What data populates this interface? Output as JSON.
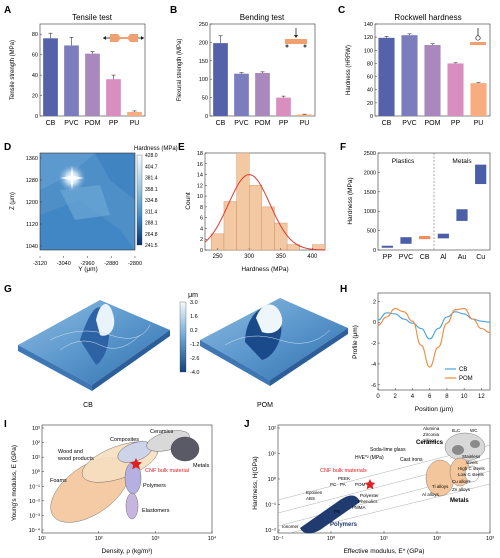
{
  "panels": {
    "A": {
      "letter": "A",
      "title": "Tensile test",
      "ylabel": "Tensile strength (MPa)",
      "yticks": [
        "0",
        "20",
        "40",
        "60",
        "80"
      ]
    },
    "B": {
      "letter": "B",
      "title": "Bending test",
      "ylabel": "Flexural strength (MPa)",
      "yticks": [
        "0",
        "50",
        "100",
        "150",
        "200",
        "250"
      ]
    },
    "C": {
      "letter": "C",
      "title": "Rockwell hardness",
      "ylabel": "Hardness (HRRW)",
      "yticks": [
        "0",
        "20",
        "40",
        "60",
        "80",
        "100",
        "120",
        "140"
      ]
    },
    "D": {
      "letter": "D",
      "xlabel": "Y (μm)",
      "ylabel": "Z (μm)",
      "colorbar_title": "Hardness (MPa)",
      "xticks": [
        "-3120",
        "-3040",
        "-2960",
        "-2880",
        "-2800"
      ],
      "yticks": [
        "1360",
        "1280",
        "1200",
        "1120",
        "1040"
      ],
      "colorbar_ticks": [
        "428.0",
        "404.7",
        "381.4",
        "358.1",
        "334.8",
        "311.4",
        "288.1",
        "264.8",
        "241.5"
      ]
    },
    "E": {
      "letter": "E",
      "xlabel": "Hardness (MPa)",
      "ylabel": "Count",
      "xticks": [
        "250",
        "300",
        "350",
        "400"
      ],
      "yticks": [
        "0",
        "2",
        "4",
        "6",
        "8",
        "10",
        "12",
        "14",
        "16",
        "18"
      ]
    },
    "F": {
      "letter": "F",
      "ylabel": "Hardness (MPa)",
      "group1": "Plastics",
      "group2": "Metals",
      "yticks": [
        "0",
        "500",
        "1000",
        "1500",
        "2000",
        "2500"
      ]
    },
    "G": {
      "letter": "G",
      "colorbar_title": "μm",
      "colorbar_ticks": [
        "3.0",
        "1.6",
        "0.2",
        "-1.2",
        "-2.6",
        "-4.0"
      ],
      "label_left": "CB",
      "label_right": "POM"
    },
    "H": {
      "letter": "H",
      "xlabel": "Position (μm)",
      "ylabel": "Profile (μm)",
      "xticks": [
        "0",
        "2",
        "4",
        "6",
        "8",
        "10",
        "12"
      ],
      "yticks": [
        "2",
        "0",
        "-2",
        "-4",
        "-6"
      ]
    },
    "I": {
      "letter": "I",
      "xlabel": "Density, ρ (kg/m³)",
      "ylabel": "Young's modulus, E (GPa)",
      "xticks": [
        "10¹",
        "10²",
        "10³",
        "10⁴"
      ],
      "yticks": [
        "10³",
        "10²",
        "10¹",
        "10⁰",
        "10⁻¹",
        "10⁻²",
        "10⁻³",
        "10⁻⁴"
      ],
      "labels": {
        "ceramics": "Ceramics",
        "composites": "Composites",
        "wood": "Wood and",
        "wood2": "wood products",
        "metals": "Metals",
        "cnf": "CNF bulk material",
        "foams": "Foams",
        "polymers": "Polymers",
        "elastomers": "Elastomers"
      }
    },
    "J": {
      "letter": "J",
      "xlabel": "Effective modulus, E* (GPa)",
      "ylabel": "Hardness, H(GPa)",
      "xticks": [
        "10⁻¹",
        "10⁰",
        "10¹",
        "10²",
        "10³"
      ],
      "yticks": [
        "10²",
        "10¹",
        "10⁰",
        "10⁻¹",
        "10⁻²"
      ],
      "labels": {
        "ratio": "H³/E*² (MPa)",
        "cnf": "CNF bulk materials",
        "sodalime": "Soda-lime glass",
        "castiron": "Cast irons",
        "ceramics": "Ceramics",
        "alumina": "Alumina",
        "zirconia": "Zirconia",
        "silicon": "Silicon",
        "b4c": "B₄C",
        "wc": "WC",
        "stainless": "Stainless",
        "steels": "steels",
        "highc": "High C steels",
        "lowc": "Low C steels",
        "cualloys": "Cu alloys",
        "tialloys": "Ti alloys",
        "znalloys": "Zn alloys",
        "alalloys": "Al alloys",
        "metals": "Metals",
        "polymers": "Polymers",
        "peek": "PEEK",
        "pc": "PC",
        "pa": "PA",
        "pom": "POM",
        "epoxies": "Epoxies",
        "abs": "ABS",
        "polyester": "Polyester",
        "phenolics": "Phenolics",
        "pmma": "PMMA",
        "ps": "PS",
        "ionomer": "Ionomer"
      }
    }
  },
  "chart_data": [
    {
      "type": "bar",
      "panel": "A",
      "categories": [
        "CB",
        "PVC",
        "POM",
        "PP",
        "PU"
      ],
      "values": [
        76,
        69,
        61,
        36,
        4
      ],
      "errors": [
        5,
        8,
        2,
        4,
        1
      ],
      "ylim": [
        0,
        90
      ],
      "colors": [
        "#5561a8",
        "#7b7dbc",
        "#a888bd",
        "#d88fc0",
        "#f7ad80"
      ]
    },
    {
      "type": "bar",
      "panel": "B",
      "categories": [
        "CB",
        "PVC",
        "POM",
        "PP",
        "PU"
      ],
      "values": [
        198,
        115,
        117,
        50,
        4
      ],
      "errors": [
        20,
        3,
        3,
        4,
        1
      ],
      "ylim": [
        0,
        250
      ],
      "colors": [
        "#5561a8",
        "#7b7dbc",
        "#a888bd",
        "#d88fc0",
        "#f7ad80"
      ]
    },
    {
      "type": "bar",
      "panel": "C",
      "categories": [
        "CB",
        "PVC",
        "POM",
        "PP",
        "PU"
      ],
      "values": [
        119,
        123,
        108,
        80,
        50
      ],
      "errors": [
        2,
        2,
        2,
        1,
        1
      ],
      "ylim": [
        0,
        140
      ],
      "colors": [
        "#5561a8",
        "#7b7dbc",
        "#a888bd",
        "#d88fc0",
        "#f7ad80"
      ]
    },
    {
      "type": "heatmap",
      "panel": "D",
      "xlim": [
        -3120,
        -2800
      ],
      "ylim": [
        1040,
        1360
      ],
      "clim": [
        241.5,
        428.0
      ],
      "peak_value": 428.0
    },
    {
      "type": "bar",
      "panel": "E",
      "x": [
        250,
        270,
        290,
        310,
        330,
        350,
        370,
        390,
        410
      ],
      "values": [
        3,
        9,
        18,
        12,
        8,
        5,
        1,
        0,
        1
      ],
      "xlim": [
        230,
        420
      ],
      "ylim": [
        0,
        18
      ],
      "fit": {
        "mean": 300,
        "sd": 33,
        "peak": 14
      }
    },
    {
      "type": "bar",
      "panel": "F",
      "categories": [
        "PP",
        "PVC",
        "CB",
        "Al",
        "Au",
        "Cu"
      ],
      "ranges": [
        [
          70,
          110
        ],
        [
          160,
          330
        ],
        [
          280,
          360
        ],
        [
          300,
          420
        ],
        [
          750,
          1050
        ],
        [
          1700,
          2200
        ]
      ],
      "ylim": [
        0,
        2500
      ],
      "colors": [
        "#4a5fa7",
        "#4a5fa7",
        "#f28b5c",
        "#4a5fa7",
        "#4a5fa7",
        "#4a5fa7"
      ]
    },
    {
      "type": "line",
      "panel": "H",
      "xlim": [
        0,
        13
      ],
      "ylim": [
        -6.5,
        2.8
      ],
      "series": [
        {
          "name": "CB",
          "color": "#4aa3df",
          "x": [
            0,
            1,
            2,
            3,
            4,
            5,
            6,
            7,
            8,
            9,
            10,
            11,
            12,
            13
          ],
          "values": [
            0.2,
            0.9,
            0.8,
            0.3,
            -0.1,
            -0.6,
            -1.6,
            -0.6,
            0.5,
            1.0,
            0.8,
            0.3,
            0.1,
            0.0
          ]
        },
        {
          "name": "POM",
          "color": "#f28b3c",
          "x": [
            0,
            1,
            2,
            3,
            4,
            5,
            6,
            7,
            8,
            9,
            10,
            11,
            12,
            13
          ],
          "values": [
            -0.3,
            0.5,
            1.3,
            1.0,
            0.1,
            -2.2,
            -4.3,
            -2.4,
            -0.1,
            1.2,
            1.3,
            0.3,
            -0.6,
            -1.0
          ]
        }
      ]
    }
  ]
}
